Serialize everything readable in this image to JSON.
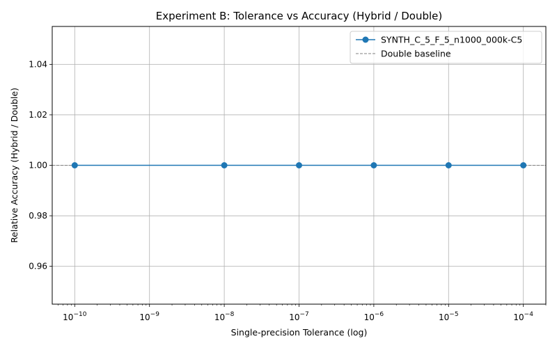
{
  "chart_data": {
    "type": "line",
    "title": "Experiment B: Tolerance vs Accuracy (Hybrid / Double)",
    "xlabel": "Single-precision Tolerance (log)",
    "ylabel": "Relative Accuracy (Hybrid / Double)",
    "xscale": "log",
    "xlim": [
      5e-11,
      0.0002
    ],
    "ylim": [
      0.945,
      1.055
    ],
    "grid": true,
    "legend_position": "top-right",
    "x_ticks": [
      {
        "value": 1e-10,
        "mantissa": "10",
        "exponent": "−10"
      },
      {
        "value": 1e-09,
        "mantissa": "10",
        "exponent": "−9"
      },
      {
        "value": 1e-08,
        "mantissa": "10",
        "exponent": "−8"
      },
      {
        "value": 1e-07,
        "mantissa": "10",
        "exponent": "−7"
      },
      {
        "value": 1e-06,
        "mantissa": "10",
        "exponent": "−6"
      },
      {
        "value": 1e-05,
        "mantissa": "10",
        "exponent": "−5"
      },
      {
        "value": 0.0001,
        "mantissa": "10",
        "exponent": "−4"
      }
    ],
    "y_ticks": [
      {
        "value": 0.96,
        "label": "0.96"
      },
      {
        "value": 0.98,
        "label": "0.98"
      },
      {
        "value": 1.0,
        "label": "1.00"
      },
      {
        "value": 1.02,
        "label": "1.02"
      },
      {
        "value": 1.04,
        "label": "1.04"
      }
    ],
    "series": [
      {
        "name": "SYNTH_C_5_F_5_n1000_000k-C5",
        "color": "#1f77b4",
        "marker": "circle",
        "x": [
          1e-10,
          1e-08,
          1e-07,
          1e-06,
          1e-05,
          0.0001
        ],
        "y": [
          1.0,
          1.0,
          1.0,
          1.0,
          1.0,
          1.0
        ]
      }
    ],
    "reference_lines": [
      {
        "name": "Double baseline",
        "y": 1.0,
        "color": "#808080",
        "style": "dashed"
      }
    ]
  }
}
